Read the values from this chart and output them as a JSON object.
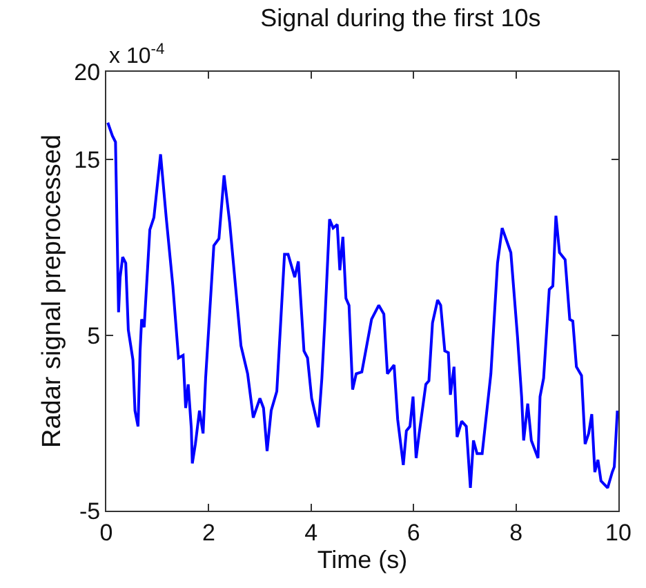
{
  "chart_data": {
    "type": "line",
    "title": "Signal during the first 10s",
    "xlabel": "Time (s)",
    "ylabel": "Radar signal preprocessed",
    "annotations": [
      "x 10$^{-4}$"
    ],
    "xlim": [
      0,
      10
    ],
    "xticks": [
      0,
      2,
      4,
      6,
      8,
      10
    ],
    "ylim": [
      -5,
      20
    ],
    "yticks": [
      -5,
      5,
      15,
      20
    ],
    "marker": "none",
    "line_style": "solid",
    "series": [
      {
        "color": "#0000ff",
        "x": [
          0.03,
          0.12,
          0.18,
          0.21,
          0.24,
          0.27,
          0.32,
          0.38,
          0.43,
          0.52,
          0.56,
          0.62,
          0.66,
          0.69,
          0.74,
          0.85,
          0.93,
          1.06,
          1.17,
          1.3,
          1.41,
          1.5,
          1.55,
          1.6,
          1.66,
          1.68,
          1.74,
          1.82,
          1.89,
          1.94,
          2.1,
          2.2,
          2.3,
          2.41,
          2.63,
          2.76,
          2.87,
          3.0,
          3.07,
          3.14,
          3.22,
          3.33,
          3.48,
          3.55,
          3.68,
          3.75,
          3.86,
          3.93,
          4.01,
          4.14,
          4.21,
          4.27,
          4.36,
          4.43,
          4.51,
          4.56,
          4.62,
          4.68,
          4.74,
          4.81,
          4.88,
          4.99,
          5.18,
          5.32,
          5.42,
          5.49,
          5.62,
          5.69,
          5.8,
          5.86,
          5.93,
          5.99,
          6.05,
          6.11,
          6.24,
          6.3,
          6.37,
          6.47,
          6.53,
          6.61,
          6.68,
          6.72,
          6.79,
          6.85,
          6.94,
          7.03,
          7.11,
          7.17,
          7.24,
          7.34,
          7.51,
          7.64,
          7.73,
          7.9,
          8.03,
          8.11,
          8.15,
          8.23,
          8.3,
          8.43,
          8.47,
          8.54,
          8.65,
          8.72,
          8.78,
          8.85,
          8.96,
          9.05,
          9.11,
          9.18,
          9.28,
          9.35,
          9.42,
          9.48,
          9.54,
          9.6,
          9.66,
          9.79,
          9.88,
          9.92,
          9.98
        ],
        "values": [
          17.1,
          16.35,
          16.0,
          11.1,
          6.3,
          8.3,
          9.45,
          9.1,
          5.3,
          3.6,
          0.7,
          -0.2,
          4.1,
          5.9,
          5.45,
          11.0,
          11.7,
          15.3,
          11.7,
          7.8,
          3.7,
          3.85,
          0.85,
          2.2,
          -0.3,
          -2.3,
          -1.2,
          0.7,
          -0.6,
          2.55,
          10.1,
          10.5,
          14.1,
          11.4,
          4.4,
          2.8,
          0.3,
          1.4,
          0.85,
          -1.6,
          0.7,
          1.8,
          9.6,
          9.6,
          8.3,
          9.2,
          4.1,
          3.7,
          1.4,
          -0.25,
          2.55,
          5.9,
          11.6,
          11.1,
          11.3,
          8.7,
          10.6,
          7.1,
          6.7,
          1.9,
          2.8,
          2.9,
          5.9,
          6.7,
          6.2,
          2.8,
          3.3,
          0.2,
          -2.4,
          -0.45,
          -0.2,
          1.5,
          -2.0,
          -0.6,
          2.2,
          2.4,
          5.7,
          7.0,
          6.7,
          4.1,
          4.0,
          1.6,
          3.2,
          -0.8,
          0.1,
          -0.2,
          -3.7,
          -1.0,
          -1.75,
          -1.75,
          2.8,
          9.1,
          11.1,
          9.7,
          4.9,
          1.5,
          -1.0,
          1.1,
          -1.0,
          -2.0,
          1.5,
          2.55,
          7.6,
          7.8,
          11.8,
          9.7,
          9.3,
          5.9,
          5.8,
          3.2,
          2.7,
          -1.2,
          -0.6,
          0.5,
          -2.8,
          -2.1,
          -3.3,
          -3.7,
          -2.8,
          -2.5,
          0.7
        ]
      }
    ]
  }
}
